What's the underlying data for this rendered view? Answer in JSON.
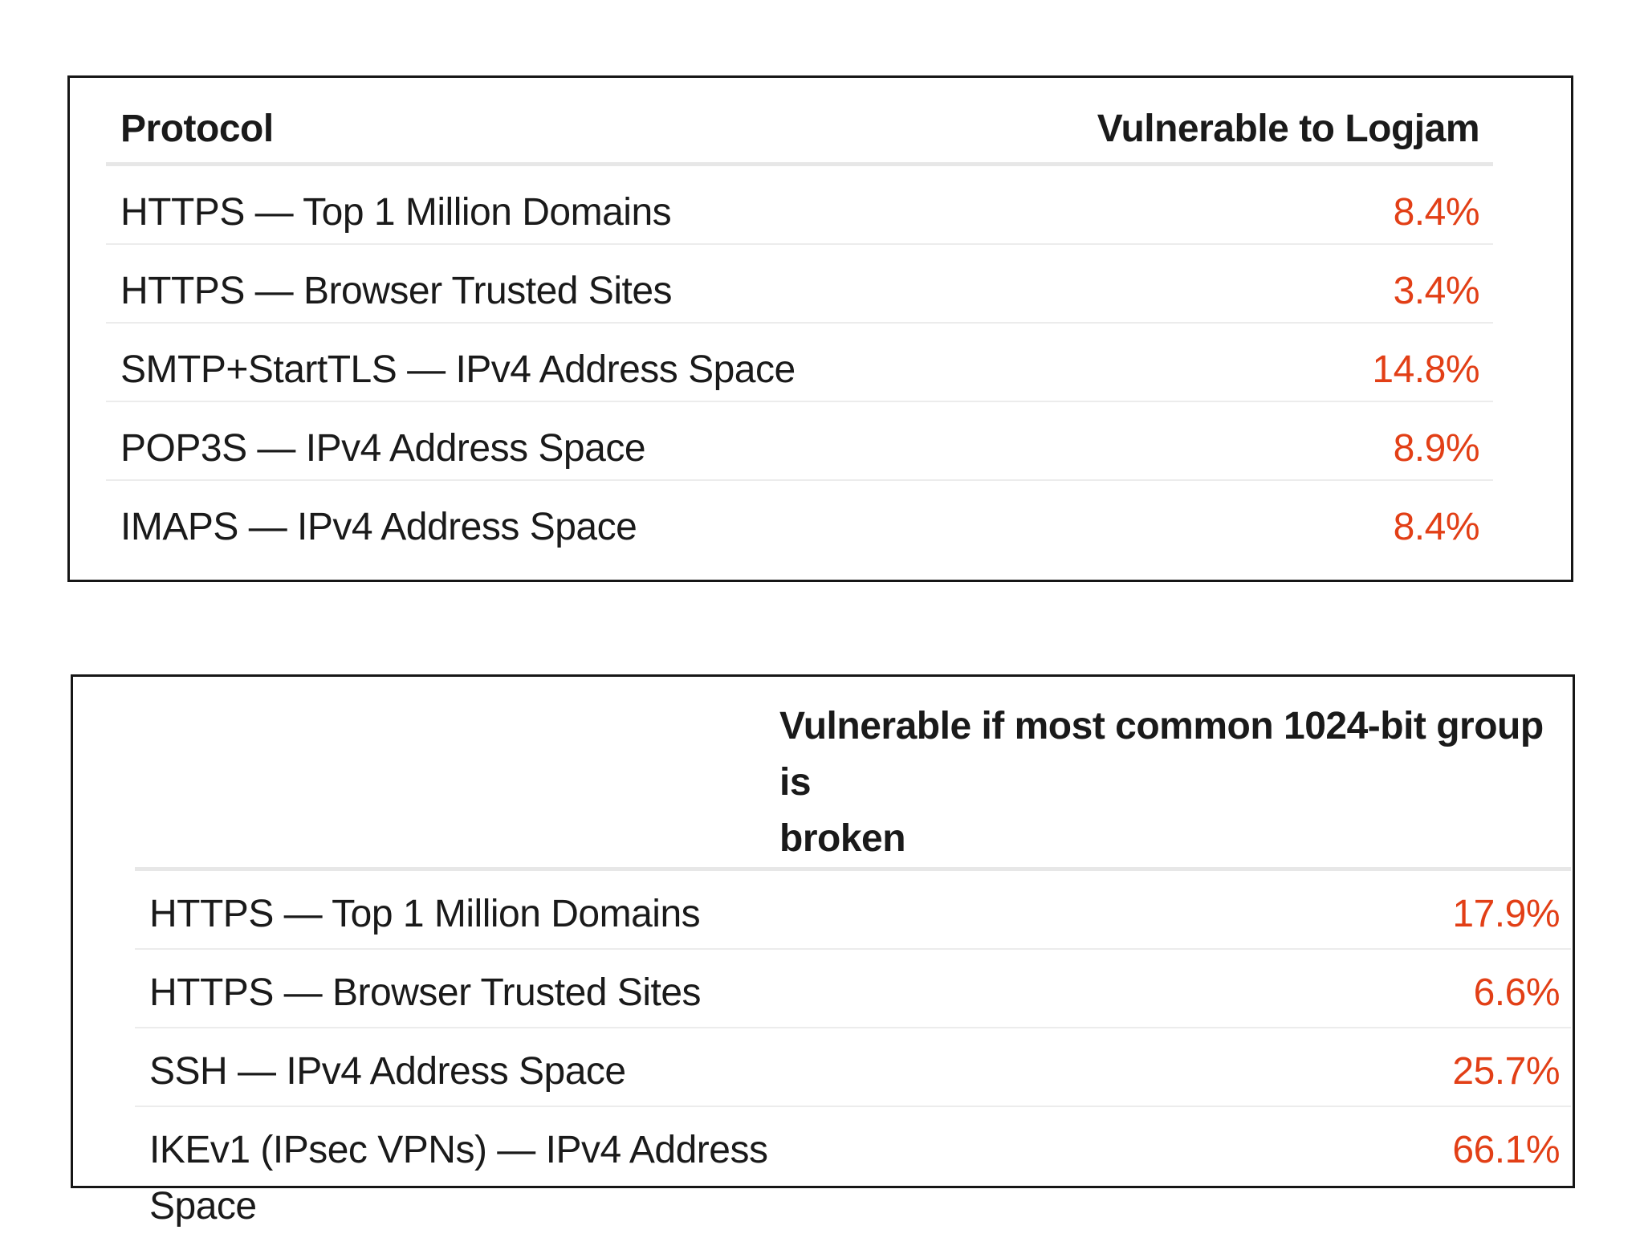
{
  "colors": {
    "accent": "#e23f16",
    "text": "#1a1a1a",
    "panel_border": "#161616",
    "divider": "#ececec",
    "divider_strong": "#e7e7e7"
  },
  "chart_data": [
    {
      "type": "table",
      "title": "Vulnerable to Logjam",
      "columns": [
        "Protocol",
        "Vulnerable to Logjam"
      ],
      "value_unit": "percent",
      "rows": [
        {
          "protocol": "HTTPS — Top 1 Million Domains",
          "value": "8.4%",
          "value_num": 8.4
        },
        {
          "protocol": "HTTPS — Browser Trusted Sites",
          "value": "3.4%",
          "value_num": 3.4
        },
        {
          "protocol": "SMTP+StartTLS — IPv4 Address Space",
          "value": "14.8%",
          "value_num": 14.8
        },
        {
          "protocol": "POP3S — IPv4 Address Space",
          "value": "8.9%",
          "value_num": 8.9
        },
        {
          "protocol": "IMAPS — IPv4 Address Space",
          "value": "8.4%",
          "value_num": 8.4
        }
      ]
    },
    {
      "type": "table",
      "title": "Vulnerable if most common 1024-bit group is broken",
      "columns": [
        "",
        "Vulnerable if most common 1024-bit group is\nbroken"
      ],
      "value_unit": "percent",
      "rows": [
        {
          "protocol": "HTTPS — Top 1 Million Domains",
          "value": "17.9%",
          "value_num": 17.9
        },
        {
          "protocol": "HTTPS — Browser Trusted Sites",
          "value": "6.6%",
          "value_num": 6.6
        },
        {
          "protocol": "SSH — IPv4 Address Space",
          "value": "25.7%",
          "value_num": 25.7
        },
        {
          "protocol": "IKEv1 (IPsec VPNs) — IPv4 Address\nSpace",
          "value": "66.1%",
          "value_num": 66.1
        }
      ]
    }
  ]
}
